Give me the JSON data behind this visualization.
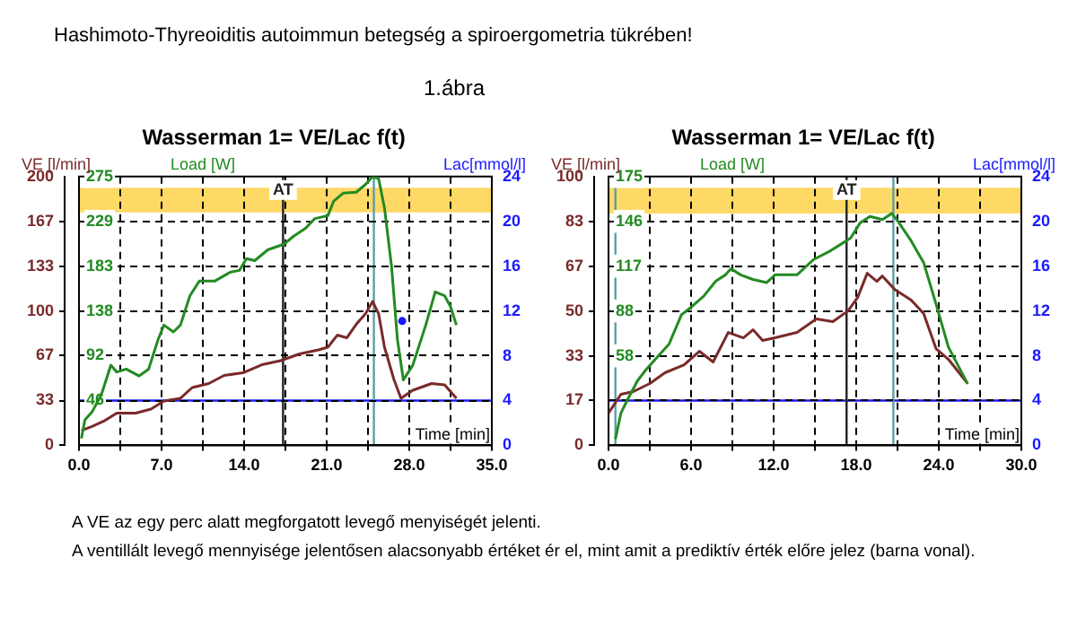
{
  "chart_data": [
    {
      "type": "other",
      "title": "Hashimoto-Thyreoiditis autoimmun betegség a spiroergometria tükrében!",
      "subtitle": "1.ábra"
    },
    {
      "type": "line",
      "title": "Wasserman 1= VE/Lac f(t)",
      "ylabel": "VE [l/min]",
      "y3label": "Load [W]",
      "y2label": "Lac[mmol/l]",
      "xlabel": "Time [min]",
      "grid": true,
      "marker": "none",
      "xlim": [
        0,
        35
      ],
      "xticks": [
        {
          "value": 0,
          "label": "0.0"
        },
        {
          "value": 3.5,
          "label": null
        },
        {
          "value": 7,
          "label": "7.0"
        },
        {
          "value": 10.5,
          "label": null
        },
        {
          "value": 14,
          "label": "14.0"
        },
        {
          "value": 17.5,
          "label": null
        },
        {
          "value": 21,
          "label": "21.0"
        },
        {
          "value": 24.5,
          "label": null
        },
        {
          "value": 28,
          "label": "28.0"
        },
        {
          "value": 31.5,
          "label": null
        },
        {
          "value": 35,
          "label": "35.0"
        }
      ],
      "ylim": [
        0,
        200
      ],
      "yticks": [
        0,
        {
          "value": 33.3,
          "label": "33"
        },
        {
          "value": 66.7,
          "label": "67"
        },
        100,
        {
          "value": 133.3,
          "label": "133"
        },
        {
          "value": 166.7,
          "label": "167"
        },
        200
      ],
      "y3lim": [
        0,
        275
      ],
      "y3ticks": [
        {
          "value": 45.8,
          "label": "46"
        },
        {
          "value": 91.7,
          "label": "92"
        },
        {
          "value": 137.5,
          "label": "138"
        },
        {
          "value": 183.3,
          "label": "183"
        },
        {
          "value": 229.2,
          "label": "229"
        },
        275
      ],
      "y2lim": [
        0,
        24
      ],
      "y2ticks": [
        0,
        4,
        8,
        12,
        16,
        20,
        24
      ],
      "series": [
        {
          "type": "line",
          "color": "#228b22",
          "axis": "y3",
          "x": [
            0.2,
            0.5,
            1.1,
            1.9,
            2.7,
            3.2,
            4.0,
            5.1,
            5.9,
            6.7,
            7.2,
            8.0,
            8.6,
            9.4,
            10.2,
            11.5,
            12.8,
            13.6,
            14.2,
            14.9,
            16.0,
            17.4,
            18.2,
            19.2,
            20.0,
            21.1,
            21.6,
            22.4,
            23.5,
            24.3,
            24.9,
            25.4,
            25.9,
            26.5,
            27.0,
            27.5,
            28.3,
            29.4,
            30.2,
            31.0,
            31.5,
            32.0
          ],
          "values": [
            7,
            26,
            34,
            52,
            82,
            75,
            78,
            71,
            78,
            108,
            123,
            116,
            123,
            153,
            168,
            168,
            177,
            179,
            191,
            189,
            200,
            206,
            214,
            222,
            232,
            235,
            250,
            258,
            259,
            267,
            275,
            273,
            243,
            183,
            108,
            67,
            82,
            123,
            157,
            153,
            142,
            123
          ]
        },
        {
          "type": "line",
          "color": "#7a2a2a",
          "x": [
            0.2,
            1.1,
            2.1,
            3.2,
            4.8,
            6.1,
            7.2,
            8.6,
            9.6,
            11.0,
            12.3,
            13.9,
            15.5,
            17.1,
            18.7,
            20.3,
            21.1,
            21.9,
            22.7,
            23.5,
            24.3,
            24.9,
            25.4,
            25.9,
            26.7,
            27.3,
            28.3,
            29.9,
            31.0,
            32.0
          ],
          "values": [
            11,
            14,
            18,
            24,
            24,
            27,
            33,
            35,
            43,
            46,
            52,
            54,
            60,
            63,
            68,
            71,
            73,
            82,
            80,
            90,
            98,
            107,
            98,
            73,
            49,
            35,
            41,
            46,
            45,
            35
          ]
        },
        {
          "type": "scatter",
          "color": "#1a1aff",
          "axis": "y2",
          "marker": "circle",
          "x": [
            27.4
          ],
          "values": [
            11.1
          ]
        }
      ],
      "bands": [
        {
          "axis": "y2",
          "from": 20.8,
          "to": 23,
          "color": "#ffd966"
        }
      ],
      "ref_lines": [
        {
          "axis": "y2",
          "value": 4,
          "color": "#1a1aff"
        },
        {
          "axis": "x",
          "value": 17.3,
          "label": "AT",
          "color": "#222222"
        },
        {
          "axis": "x",
          "value": 25,
          "color": "#5f9ea0"
        }
      ]
    },
    {
      "type": "line",
      "title": "Wasserman 1= VE/Lac f(t)",
      "ylabel": "VE [l/min]",
      "y3label": "Load [W]",
      "y2label": "Lac[mmol/l]",
      "xlabel": "Time [min]",
      "grid": true,
      "marker": "none",
      "xlim": [
        0,
        30
      ],
      "xticks": [
        {
          "value": 0,
          "label": "0.0"
        },
        {
          "value": 3,
          "label": null
        },
        {
          "value": 6,
          "label": "6.0"
        },
        {
          "value": 9,
          "label": null
        },
        {
          "value": 12,
          "label": "12.0"
        },
        {
          "value": 15,
          "label": null
        },
        {
          "value": 18,
          "label": "18.0"
        },
        {
          "value": 21,
          "label": null
        },
        {
          "value": 24,
          "label": "24.0"
        },
        {
          "value": 27,
          "label": null
        },
        {
          "value": 30,
          "label": "30.0"
        }
      ],
      "ylim": [
        0,
        100
      ],
      "yticks": [
        0,
        {
          "value": 16.7,
          "label": "17"
        },
        {
          "value": 33.3,
          "label": "33"
        },
        50,
        {
          "value": 66.7,
          "label": "67"
        },
        {
          "value": 83.3,
          "label": "83"
        },
        100
      ],
      "y3lim": [
        0,
        175
      ],
      "y3ticks": [
        {
          "value": 58.3,
          "label": "58"
        },
        {
          "value": 87.5,
          "label": "88"
        },
        {
          "value": 116.7,
          "label": "117"
        },
        {
          "value": 145.8,
          "label": "146"
        },
        175
      ],
      "y2lim": [
        0,
        24
      ],
      "y2ticks": [
        0,
        4,
        8,
        12,
        16,
        20,
        24
      ],
      "series": [
        {
          "type": "line",
          "color": "#228b22",
          "axis": "y3",
          "x": [
            0.5,
            0.9,
            1.4,
            2.1,
            2.7,
            3.4,
            4.4,
            5.3,
            6.0,
            6.9,
            7.8,
            8.5,
            8.9,
            9.6,
            10.5,
            11.5,
            12.1,
            12.8,
            13.7,
            14.9,
            16.0,
            16.9,
            17.6,
            18.3,
            19.0,
            19.9,
            20.6,
            21.1,
            22.0,
            22.9,
            23.8,
            24.7,
            26.1
          ],
          "values": [
            4,
            21,
            30,
            42,
            49,
            56,
            66,
            85,
            90,
            97,
            107,
            111,
            115,
            111,
            108,
            106,
            111,
            111,
            111,
            121,
            126,
            131,
            135,
            145,
            149,
            147,
            151,
            145,
            133,
            119,
            92,
            64,
            40
          ]
        },
        {
          "type": "line",
          "color": "#7a2a2a",
          "x": [
            0,
            0.9,
            1.8,
            3.0,
            4.1,
            5.5,
            6.6,
            7.6,
            8.7,
            9.8,
            10.5,
            11.2,
            12.1,
            13.7,
            15.1,
            16.3,
            17.4,
            18.1,
            18.8,
            19.5,
            19.9,
            20.8,
            22.0,
            22.9,
            23.8,
            24.7,
            26.1
          ],
          "values": [
            12,
            19,
            20,
            23,
            27,
            30,
            35,
            31,
            42,
            40,
            43,
            39,
            40,
            42,
            47,
            46,
            50,
            55,
            64,
            61,
            63,
            58,
            54,
            49,
            36,
            32,
            23
          ]
        }
      ],
      "bands": [
        {
          "axis": "y2",
          "from": 20.7,
          "to": 23,
          "color": "#ffd966"
        }
      ],
      "ref_lines": [
        {
          "axis": "y2",
          "value": 4,
          "color": "#1a1aff"
        },
        {
          "axis": "x",
          "value": 17.3,
          "label": "AT",
          "color": "#222222"
        },
        {
          "axis": "x",
          "value": 20.7,
          "color": "#5f9ea0"
        },
        {
          "axis": "x",
          "value": 0.5,
          "color": "#5f9ea0"
        }
      ]
    },
    {
      "type": "other",
      "annotations": [
        "A VE az egy perc alatt megforgatott levegő menyiségét jelenti.",
        "A ventillált levegő mennyisége jelentősen alacsonyabb értéket ér el, mint amit a prediktív érték előre jelez (barna vonal)."
      ]
    }
  ]
}
